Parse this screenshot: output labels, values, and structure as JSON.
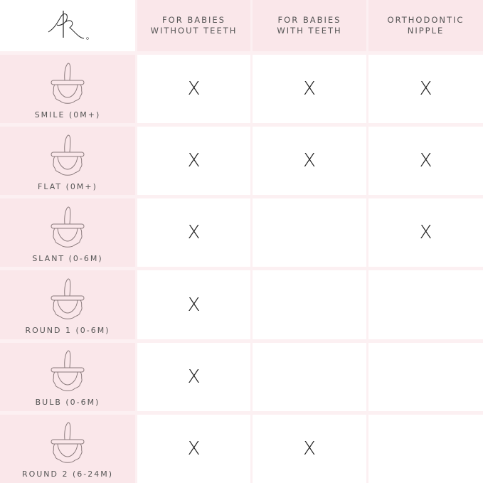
{
  "logo": {
    "text": "RR",
    "icon": "monogram-logo"
  },
  "columns": [
    "FOR BABIES WITHOUT TEETH",
    "FOR BABIES WITH TEETH",
    "ORTHODONTIC NIPPLE"
  ],
  "colors": {
    "pink": "#fae7ea",
    "grid": "#fcf0f2",
    "text": "#555555"
  },
  "mark_symbol": "X",
  "rows": [
    {
      "name": "SMILE (0M+)",
      "marks": [
        true,
        true,
        true
      ],
      "x1": "X",
      "x2": "X",
      "x3": "X"
    },
    {
      "name": "FLAT (0M+)",
      "marks": [
        true,
        true,
        true
      ],
      "x1": "X",
      "x2": "X",
      "x3": "X"
    },
    {
      "name": "SLANT (0-6M)",
      "marks": [
        true,
        false,
        true
      ],
      "x1": "X",
      "x3": "X"
    },
    {
      "name": "ROUND 1 (0-6M)",
      "marks": [
        true,
        false,
        false
      ],
      "x1": "X"
    },
    {
      "name": "BULB (0-6M)",
      "marks": [
        true,
        false,
        false
      ],
      "x1": "X"
    },
    {
      "name": "ROUND 2 (6-24M)",
      "marks": [
        true,
        true,
        false
      ],
      "x1": "X",
      "x2": "X"
    }
  ]
}
